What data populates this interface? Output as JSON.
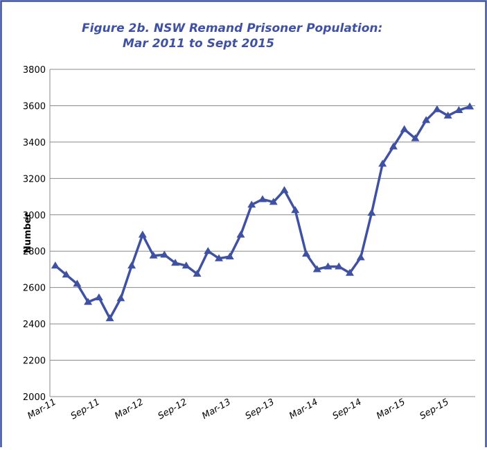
{
  "chart_data": {
    "type": "line",
    "title": "Figure 2b. NSW Remand Prisoner Population:",
    "subtitle": "Mar 2011 to Sept 2015",
    "y_label": "Number",
    "categories": [
      "Mar-11",
      null,
      null,
      null,
      "Sep-11",
      null,
      null,
      null,
      "Mar-12",
      null,
      null,
      null,
      "Sep-12",
      null,
      null,
      null,
      "Mar-13",
      null,
      null,
      null,
      "Sep-13",
      null,
      null,
      null,
      "Mar-14",
      null,
      null,
      null,
      "Sep-14",
      null,
      null,
      null,
      "Mar-15",
      null,
      null,
      null,
      "Sep-15",
      null,
      null
    ],
    "series": [
      {
        "color": "#3f51a3",
        "values": [
          2720,
          2670,
          2620,
          2520,
          2545,
          2430,
          2540,
          2720,
          2890,
          2775,
          2780,
          2735,
          2720,
          2675,
          2800,
          2760,
          2770,
          2890,
          3055,
          3085,
          3070,
          3135,
          3025,
          2785,
          2700,
          2715,
          2715,
          2680,
          2765,
          3010,
          3280,
          3375,
          3470,
          3420,
          3520,
          3580,
          3545,
          3575,
          3595
        ]
      }
    ],
    "ylim": [
      2000,
      3800
    ],
    "yticks": [
      2000,
      2200,
      2400,
      2600,
      2800,
      3000,
      3200,
      3400,
      3600,
      3800
    ],
    "grid": true
  }
}
